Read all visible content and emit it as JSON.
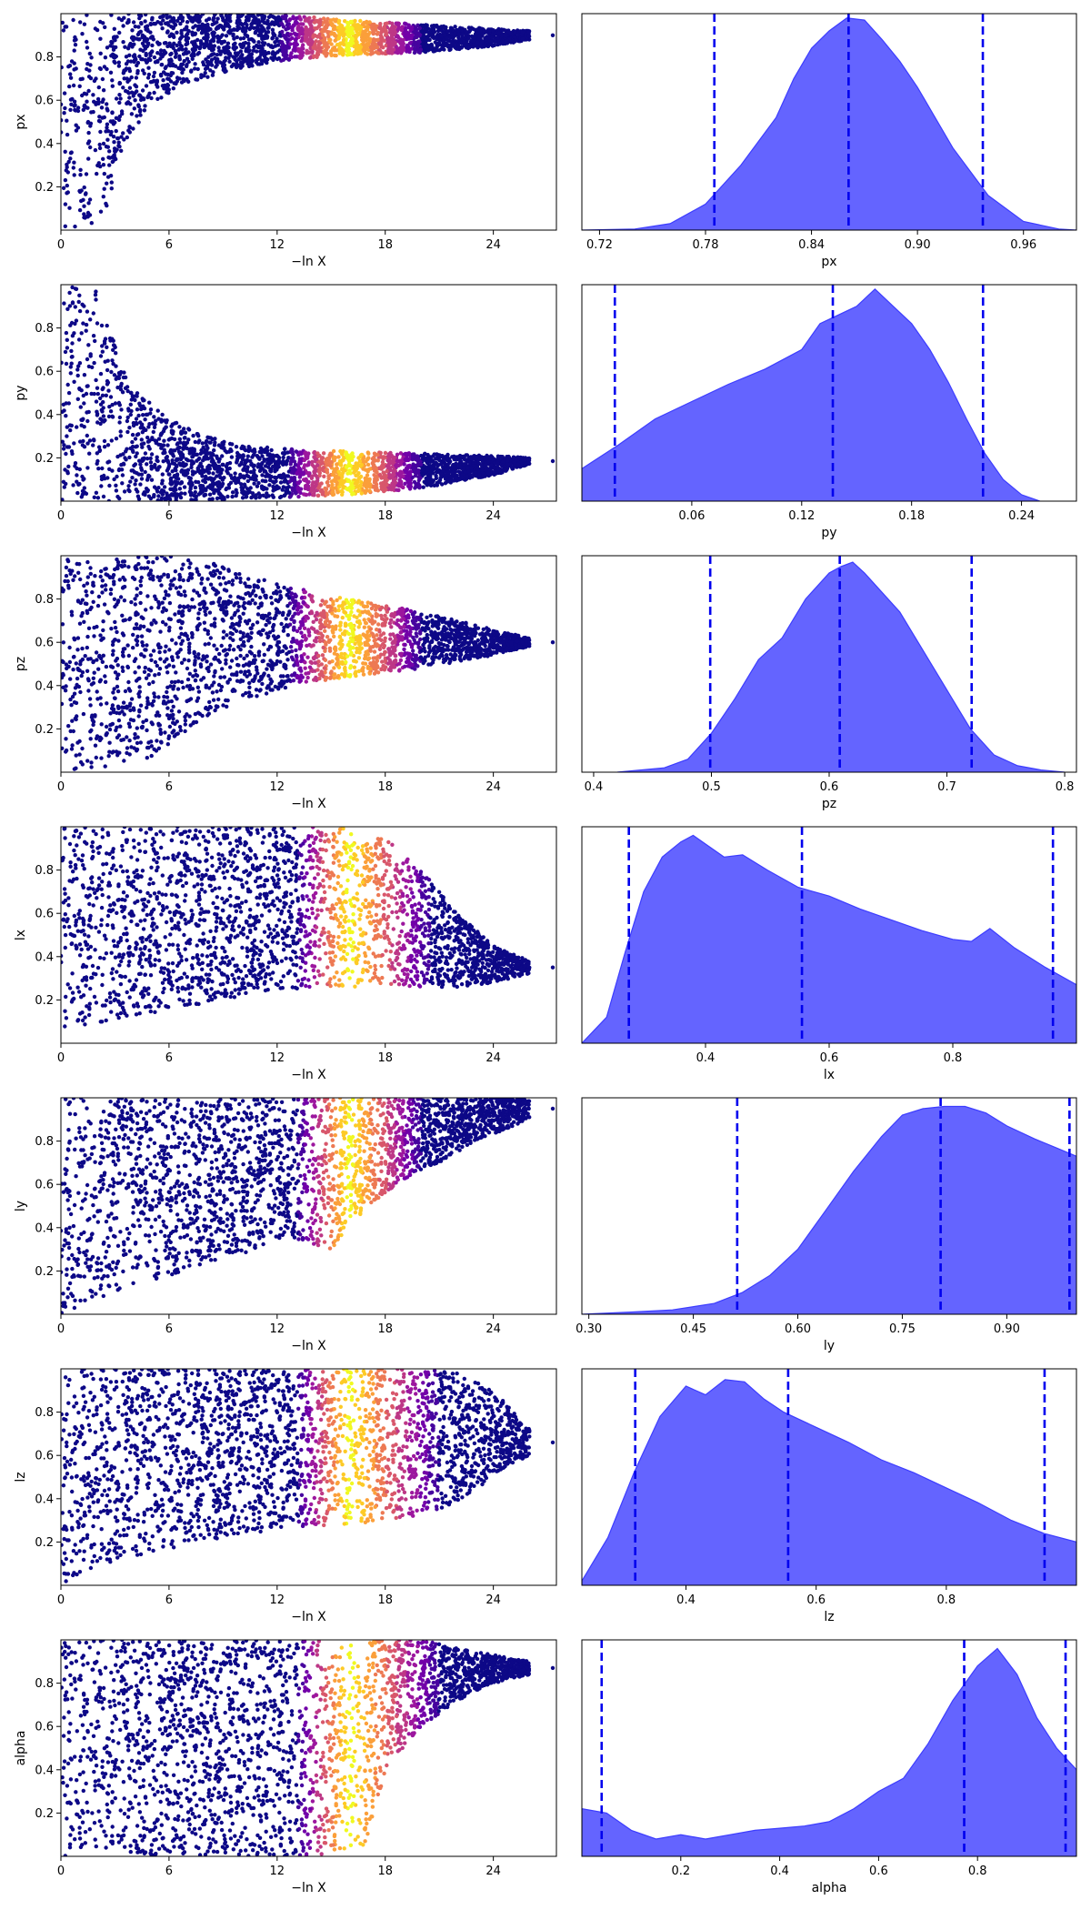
{
  "figure": {
    "description_type": "dynesty trace plot grid"
  },
  "colors": {
    "kde_fill": "#6464ff",
    "kde_edge": "#3c3cff",
    "quantile_line": "#0000ee",
    "trace_cmap": [
      "#0d0887",
      "#46039f",
      "#7201a8",
      "#9c179e",
      "#bd3786",
      "#d8576b",
      "#ed7953",
      "#fb9f3a",
      "#fdca26",
      "#f0f921"
    ]
  },
  "chart_data": [
    {
      "type": "scatter",
      "panel": "trace",
      "param": "px",
      "xlabel": "−ln X",
      "ylabel": "px",
      "xlim": [
        0,
        27.5
      ],
      "ylim": [
        0.0,
        1.0
      ],
      "xticks": [
        0,
        6,
        12,
        18,
        24
      ],
      "yticks": [
        0.2,
        0.4,
        0.6,
        0.8
      ],
      "envelope": [
        [
          0,
          0.0,
          1.0
        ],
        [
          1.5,
          0.0,
          1.0
        ],
        [
          2.5,
          0.08,
          1.0
        ],
        [
          3.5,
          0.38,
          1.0
        ],
        [
          5,
          0.58,
          1.0
        ],
        [
          7,
          0.68,
          1.0
        ],
        [
          10,
          0.75,
          1.0
        ],
        [
          13,
          0.79,
          0.99
        ],
        [
          16,
          0.81,
          0.97
        ],
        [
          20,
          0.82,
          0.95
        ],
        [
          24,
          0.85,
          0.93
        ],
        [
          26,
          0.88,
          0.92
        ]
      ],
      "peak_lnx": 16,
      "color_window": [
        12,
        20
      ]
    },
    {
      "type": "area",
      "panel": "posterior",
      "param": "px",
      "xlabel": "px",
      "xlim": [
        0.71,
        0.99
      ],
      "xticks": [
        "0.72",
        "0.78",
        "0.84",
        "0.90",
        "0.96"
      ],
      "x": [
        0.71,
        0.74,
        0.76,
        0.78,
        0.8,
        0.82,
        0.83,
        0.84,
        0.85,
        0.86,
        0.87,
        0.88,
        0.89,
        0.9,
        0.92,
        0.94,
        0.96,
        0.98,
        0.99
      ],
      "y": [
        0.0,
        0.005,
        0.03,
        0.12,
        0.3,
        0.52,
        0.7,
        0.84,
        0.92,
        0.98,
        0.97,
        0.88,
        0.78,
        0.66,
        0.38,
        0.16,
        0.04,
        0.005,
        0.0
      ],
      "quantiles": [
        0.785,
        0.861,
        0.937
      ]
    },
    {
      "type": "scatter",
      "panel": "trace",
      "param": "py",
      "xlabel": "−ln X",
      "ylabel": "py",
      "xlim": [
        0,
        27.5
      ],
      "ylim": [
        0.0,
        1.0
      ],
      "xticks": [
        0,
        6,
        12,
        18,
        24
      ],
      "yticks": [
        0.2,
        0.4,
        0.6,
        0.8
      ],
      "envelope": [
        [
          0,
          0.0,
          1.0
        ],
        [
          2,
          0.0,
          0.98
        ],
        [
          3,
          0.0,
          0.72
        ],
        [
          4,
          0.0,
          0.52
        ],
        [
          6,
          0.0,
          0.38
        ],
        [
          8,
          0.0,
          0.3
        ],
        [
          10,
          0.01,
          0.26
        ],
        [
          13,
          0.02,
          0.24
        ],
        [
          16,
          0.03,
          0.23
        ],
        [
          20,
          0.06,
          0.22
        ],
        [
          24,
          0.12,
          0.21
        ],
        [
          26,
          0.17,
          0.2
        ]
      ],
      "peak_lnx": 16,
      "color_window": [
        12.5,
        20
      ]
    },
    {
      "type": "area",
      "panel": "posterior",
      "param": "py",
      "xlabel": "py",
      "xlim": [
        0.0,
        0.27
      ],
      "xticks": [
        "0.06",
        "0.12",
        "0.18",
        "0.24"
      ],
      "x": [
        0.0,
        0.02,
        0.04,
        0.06,
        0.08,
        0.1,
        0.12,
        0.13,
        0.14,
        0.15,
        0.16,
        0.17,
        0.18,
        0.19,
        0.2,
        0.21,
        0.22,
        0.23,
        0.24,
        0.25
      ],
      "y": [
        0.15,
        0.26,
        0.38,
        0.46,
        0.54,
        0.61,
        0.7,
        0.82,
        0.86,
        0.9,
        0.98,
        0.9,
        0.82,
        0.7,
        0.55,
        0.38,
        0.22,
        0.1,
        0.03,
        0.0
      ],
      "quantiles": [
        0.018,
        0.137,
        0.219
      ]
    },
    {
      "type": "scatter",
      "panel": "trace",
      "param": "pz",
      "xlabel": "−ln X",
      "ylabel": "pz",
      "xlim": [
        0,
        27.5
      ],
      "ylim": [
        0.0,
        1.0
      ],
      "xticks": [
        0,
        6,
        12,
        18,
        24
      ],
      "yticks": [
        0.2,
        0.4,
        0.6,
        0.8
      ],
      "envelope": [
        [
          0,
          0.0,
          1.0
        ],
        [
          4,
          0.02,
          1.0
        ],
        [
          6,
          0.12,
          1.0
        ],
        [
          8,
          0.25,
          0.98
        ],
        [
          10,
          0.33,
          0.92
        ],
        [
          13,
          0.4,
          0.85
        ],
        [
          16,
          0.44,
          0.8
        ],
        [
          20,
          0.48,
          0.74
        ],
        [
          24,
          0.54,
          0.66
        ],
        [
          26,
          0.58,
          0.62
        ]
      ],
      "peak_lnx": 16,
      "color_window": [
        12.5,
        20
      ]
    },
    {
      "type": "area",
      "panel": "posterior",
      "param": "pz",
      "xlabel": "pz",
      "xlim": [
        0.39,
        0.81
      ],
      "xticks": [
        "0.4",
        "0.5",
        "0.6",
        "0.7",
        "0.8"
      ],
      "x": [
        0.42,
        0.46,
        0.48,
        0.5,
        0.52,
        0.54,
        0.56,
        0.58,
        0.6,
        0.61,
        0.62,
        0.63,
        0.64,
        0.66,
        0.68,
        0.7,
        0.72,
        0.74,
        0.76,
        0.78,
        0.8
      ],
      "y": [
        0.0,
        0.02,
        0.06,
        0.18,
        0.34,
        0.52,
        0.62,
        0.8,
        0.92,
        0.95,
        0.97,
        0.92,
        0.86,
        0.74,
        0.56,
        0.38,
        0.2,
        0.08,
        0.03,
        0.01,
        0.0
      ],
      "quantiles": [
        0.499,
        0.609,
        0.721
      ]
    },
    {
      "type": "scatter",
      "panel": "trace",
      "param": "lx",
      "xlabel": "−ln X",
      "ylabel": "lx",
      "xlim": [
        0,
        27.5
      ],
      "ylim": [
        0.0,
        1.0
      ],
      "xticks": [
        0,
        6,
        12,
        18,
        24
      ],
      "yticks": [
        0.2,
        0.4,
        0.6,
        0.8
      ],
      "envelope": [
        [
          0,
          0.0,
          1.0
        ],
        [
          2,
          0.08,
          1.0
        ],
        [
          5,
          0.14,
          1.0
        ],
        [
          9,
          0.2,
          1.0
        ],
        [
          12,
          0.25,
          1.0
        ],
        [
          16,
          0.26,
          1.0
        ],
        [
          18,
          0.26,
          0.95
        ],
        [
          20,
          0.26,
          0.8
        ],
        [
          22,
          0.26,
          0.6
        ],
        [
          24,
          0.28,
          0.45
        ],
        [
          26,
          0.32,
          0.38
        ]
      ],
      "peak_lnx": 16,
      "color_window": [
        13,
        20.5
      ]
    },
    {
      "type": "area",
      "panel": "posterior",
      "param": "lx",
      "xlabel": "lx",
      "xlim": [
        0.2,
        1.0
      ],
      "xticks": [
        "0.4",
        "0.6",
        "0.8"
      ],
      "x": [
        0.2,
        0.24,
        0.27,
        0.3,
        0.33,
        0.36,
        0.38,
        0.4,
        0.43,
        0.46,
        0.5,
        0.55,
        0.6,
        0.65,
        0.7,
        0.75,
        0.8,
        0.83,
        0.86,
        0.9,
        0.95,
        1.0
      ],
      "y": [
        0.0,
        0.12,
        0.42,
        0.7,
        0.86,
        0.93,
        0.96,
        0.92,
        0.86,
        0.87,
        0.8,
        0.72,
        0.68,
        0.62,
        0.57,
        0.52,
        0.48,
        0.47,
        0.53,
        0.44,
        0.35,
        0.27
      ],
      "quantiles": [
        0.276,
        0.556,
        0.962
      ]
    },
    {
      "type": "scatter",
      "panel": "trace",
      "param": "ly",
      "xlabel": "−ln X",
      "ylabel": "ly",
      "xlim": [
        0,
        27.5
      ],
      "ylim": [
        0.0,
        1.0
      ],
      "xticks": [
        0,
        6,
        12,
        18,
        24
      ],
      "yticks": [
        0.2,
        0.4,
        0.6,
        0.8
      ],
      "envelope": [
        [
          0,
          0.0,
          1.0
        ],
        [
          3,
          0.1,
          1.0
        ],
        [
          6,
          0.18,
          1.0
        ],
        [
          10,
          0.28,
          1.0
        ],
        [
          13,
          0.35,
          1.0
        ],
        [
          15,
          0.3,
          1.0
        ],
        [
          17,
          0.5,
          1.0
        ],
        [
          19,
          0.62,
          1.0
        ],
        [
          21,
          0.7,
          1.0
        ],
        [
          23,
          0.8,
          1.0
        ],
        [
          26,
          0.9,
          1.0
        ]
      ],
      "peak_lnx": 16,
      "color_window": [
        13,
        20
      ]
    },
    {
      "type": "area",
      "panel": "posterior",
      "param": "ly",
      "xlabel": "ly",
      "xlim": [
        0.29,
        1.0
      ],
      "xticks": [
        "0.30",
        "0.45",
        "0.60",
        "0.75",
        "0.90"
      ],
      "x": [
        0.29,
        0.36,
        0.42,
        0.48,
        0.52,
        0.56,
        0.6,
        0.64,
        0.68,
        0.72,
        0.75,
        0.78,
        0.81,
        0.84,
        0.87,
        0.9,
        0.94,
        0.97,
        1.0
      ],
      "y": [
        0.0,
        0.01,
        0.02,
        0.05,
        0.1,
        0.18,
        0.3,
        0.48,
        0.66,
        0.82,
        0.92,
        0.95,
        0.96,
        0.96,
        0.93,
        0.87,
        0.81,
        0.77,
        0.73
      ],
      "quantiles": [
        0.513,
        0.805,
        0.99
      ]
    },
    {
      "type": "scatter",
      "panel": "trace",
      "param": "lz",
      "xlabel": "−ln X",
      "ylabel": "lz",
      "xlim": [
        0,
        27.5
      ],
      "ylim": [
        0.0,
        1.0
      ],
      "xticks": [
        0,
        6,
        12,
        18,
        24
      ],
      "yticks": [
        0.2,
        0.4,
        0.6,
        0.8
      ],
      "envelope": [
        [
          0,
          0.0,
          1.0
        ],
        [
          2,
          0.08,
          1.0
        ],
        [
          5,
          0.15,
          1.0
        ],
        [
          9,
          0.22,
          1.0
        ],
        [
          13,
          0.27,
          1.0
        ],
        [
          16,
          0.28,
          1.0
        ],
        [
          20,
          0.32,
          1.0
        ],
        [
          22,
          0.38,
          0.98
        ],
        [
          24,
          0.5,
          0.9
        ],
        [
          26,
          0.6,
          0.72
        ]
      ],
      "peak_lnx": 16,
      "color_window": [
        13,
        21
      ]
    },
    {
      "type": "area",
      "panel": "posterior",
      "param": "lz",
      "xlabel": "lz",
      "xlim": [
        0.24,
        1.0
      ],
      "xticks": [
        "0.4",
        "0.6",
        "0.8"
      ],
      "x": [
        0.24,
        0.28,
        0.32,
        0.36,
        0.4,
        0.43,
        0.46,
        0.49,
        0.52,
        0.55,
        0.6,
        0.65,
        0.7,
        0.75,
        0.8,
        0.85,
        0.9,
        0.95,
        1.0
      ],
      "y": [
        0.02,
        0.22,
        0.52,
        0.78,
        0.92,
        0.88,
        0.95,
        0.94,
        0.86,
        0.8,
        0.73,
        0.66,
        0.58,
        0.52,
        0.45,
        0.38,
        0.3,
        0.24,
        0.2
      ],
      "quantiles": [
        0.322,
        0.557,
        0.951
      ]
    },
    {
      "type": "scatter",
      "panel": "trace",
      "param": "alpha",
      "xlabel": "−ln X",
      "ylabel": "alpha",
      "xlim": [
        0,
        27.5
      ],
      "ylim": [
        0.0,
        1.0
      ],
      "xticks": [
        0,
        6,
        12,
        18,
        24
      ],
      "yticks": [
        0.2,
        0.4,
        0.6,
        0.8
      ],
      "envelope": [
        [
          0,
          0.0,
          1.0
        ],
        [
          12,
          0.0,
          1.0
        ],
        [
          15,
          0.0,
          1.0
        ],
        [
          17,
          0.05,
          1.0
        ],
        [
          18,
          0.4,
          1.0
        ],
        [
          20,
          0.6,
          1.0
        ],
        [
          22,
          0.72,
          0.96
        ],
        [
          24,
          0.8,
          0.93
        ],
        [
          26,
          0.84,
          0.9
        ]
      ],
      "peak_lnx": 16,
      "color_window": [
        13,
        21
      ]
    },
    {
      "type": "area",
      "panel": "posterior",
      "param": "alpha",
      "xlabel": "alpha",
      "xlim": [
        0.0,
        1.0
      ],
      "xticks": [
        "0.2",
        "0.4",
        "0.6",
        "0.8"
      ],
      "x": [
        0.0,
        0.05,
        0.1,
        0.15,
        0.2,
        0.25,
        0.3,
        0.35,
        0.4,
        0.45,
        0.5,
        0.55,
        0.6,
        0.65,
        0.7,
        0.75,
        0.8,
        0.84,
        0.88,
        0.92,
        0.96,
        1.0
      ],
      "y": [
        0.22,
        0.2,
        0.12,
        0.08,
        0.1,
        0.08,
        0.1,
        0.12,
        0.13,
        0.14,
        0.16,
        0.22,
        0.3,
        0.36,
        0.52,
        0.72,
        0.88,
        0.96,
        0.84,
        0.64,
        0.5,
        0.4
      ],
      "quantiles": [
        0.04,
        0.773,
        0.978
      ]
    }
  ]
}
